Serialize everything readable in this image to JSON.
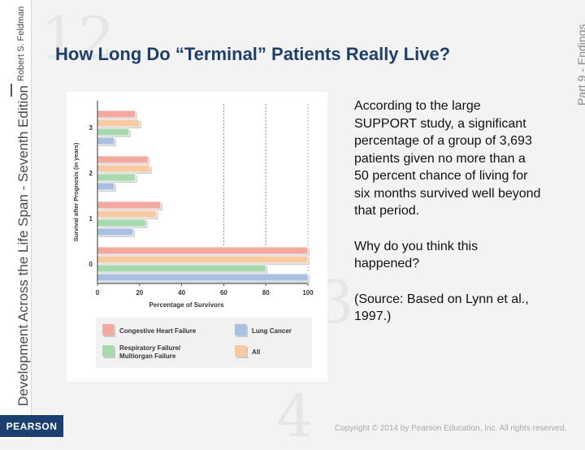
{
  "slide": {
    "title": "How Long Do “Terminal” Patients Really Live?",
    "sidebar_title": "Development Across the Life Span - Seventh Edition",
    "sidebar_author": "Robert S. Feldman",
    "part_label": "Part 9 - Endings",
    "publisher": "PEARSON",
    "copyright": "Copyright © 2014 by Pearson Education, Inc. All rights reserved.",
    "paragraphs": [
      "According to the large SUPPORT study, a significant percentage of a group of 3,693 patients given no more than a 50 percent chance of living for six months survived well beyond that period.",
      "Why do you think this happened?",
      "(Source: Based on Lynn et al., 1997.)"
    ],
    "background_digits": [
      "12",
      "3",
      "4"
    ],
    "colors": {
      "title": "#1f3f6b",
      "publisher_bg": "#1b3f6f"
    }
  },
  "chart_data": {
    "type": "bar",
    "orientation": "horizontal",
    "categories": [
      "3",
      "2",
      "1",
      "0"
    ],
    "xlabel": "Percentage of Survivors",
    "ylabel": "Survival after Prognosis (in years)",
    "xlim": [
      0,
      100
    ],
    "xticks": [
      0,
      20,
      40,
      60,
      80,
      100
    ],
    "reference_lines": [
      60,
      80
    ],
    "legend_position": "bottom",
    "series": [
      {
        "name": "Congestive Heart Failure",
        "color": "#f2aaa0",
        "values": [
          18,
          24,
          30,
          100
        ]
      },
      {
        "name": "All",
        "color": "#f6cba4",
        "values": [
          20,
          25,
          28,
          100
        ]
      },
      {
        "name": "Respiratory Failure/ Multiorgan Failure",
        "color": "#a8d9ad",
        "values": [
          15,
          18,
          23,
          80
        ]
      },
      {
        "name": "Lung Cancer",
        "color": "#a9c0e2",
        "values": [
          8,
          8,
          17,
          100
        ]
      }
    ],
    "legend_order": [
      "Congestive Heart Failure",
      "Lung Cancer",
      "Respiratory Failure/ Multiorgan Failure",
      "All"
    ]
  }
}
